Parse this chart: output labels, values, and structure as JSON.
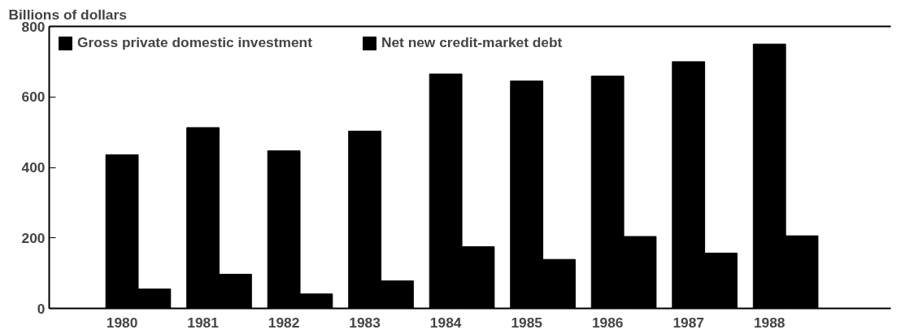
{
  "chart_data": {
    "type": "bar",
    "ylabel": "Billions of dollars",
    "categories": [
      "1980",
      "1981",
      "1982",
      "1983",
      "1984",
      "1985",
      "1986",
      "1987",
      "1988"
    ],
    "series": [
      {
        "name": "Gross private domestic investment",
        "color": "#000000",
        "values": [
          436,
          513,
          447,
          503,
          665,
          645,
          659,
          700,
          750
        ]
      },
      {
        "name": "Net new credit-market debt",
        "color": "#000000",
        "values": [
          55,
          97,
          41,
          78,
          175,
          139,
          204,
          157,
          206
        ]
      }
    ],
    "ylim": [
      0,
      800
    ],
    "yticks": [
      0,
      200,
      400,
      600,
      800
    ],
    "grid": false,
    "legend": "top left"
  }
}
